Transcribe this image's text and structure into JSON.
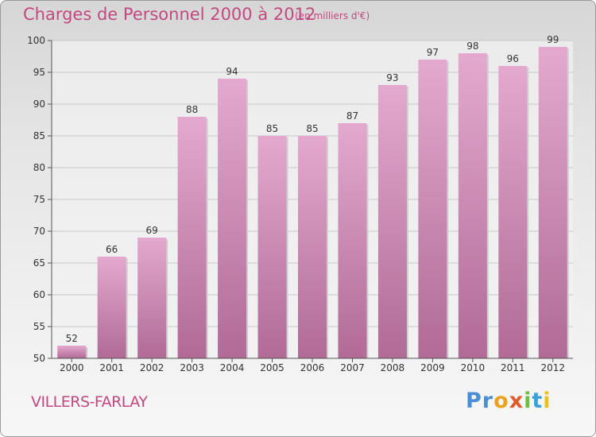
{
  "chart_data": {
    "type": "bar",
    "title": "Charges de Personnel 2000 à 2012",
    "subtitle": "(en milliers d'€)",
    "categories": [
      "2000",
      "2001",
      "2002",
      "2003",
      "2004",
      "2005",
      "2006",
      "2007",
      "2008",
      "2009",
      "2010",
      "2011",
      "2012"
    ],
    "values": [
      52,
      66,
      69,
      88,
      94,
      85,
      85,
      87,
      93,
      97,
      98,
      96,
      99
    ],
    "ylim": [
      50,
      100
    ],
    "yticks": [
      50,
      55,
      60,
      65,
      70,
      75,
      80,
      85,
      90,
      95,
      100
    ],
    "grid": true,
    "bar_color": "#d98fbc"
  },
  "commune": "VILLERS-FARLAY",
  "logo": {
    "letters": [
      "P",
      "r",
      "o",
      "x",
      "i",
      "t",
      "i"
    ],
    "colors": [
      "#4a8fd6",
      "#4a8fd6",
      "#e8a21c",
      "#e05a2a",
      "#6cbf3c",
      "#3aa0d8",
      "#e8c21c"
    ]
  }
}
